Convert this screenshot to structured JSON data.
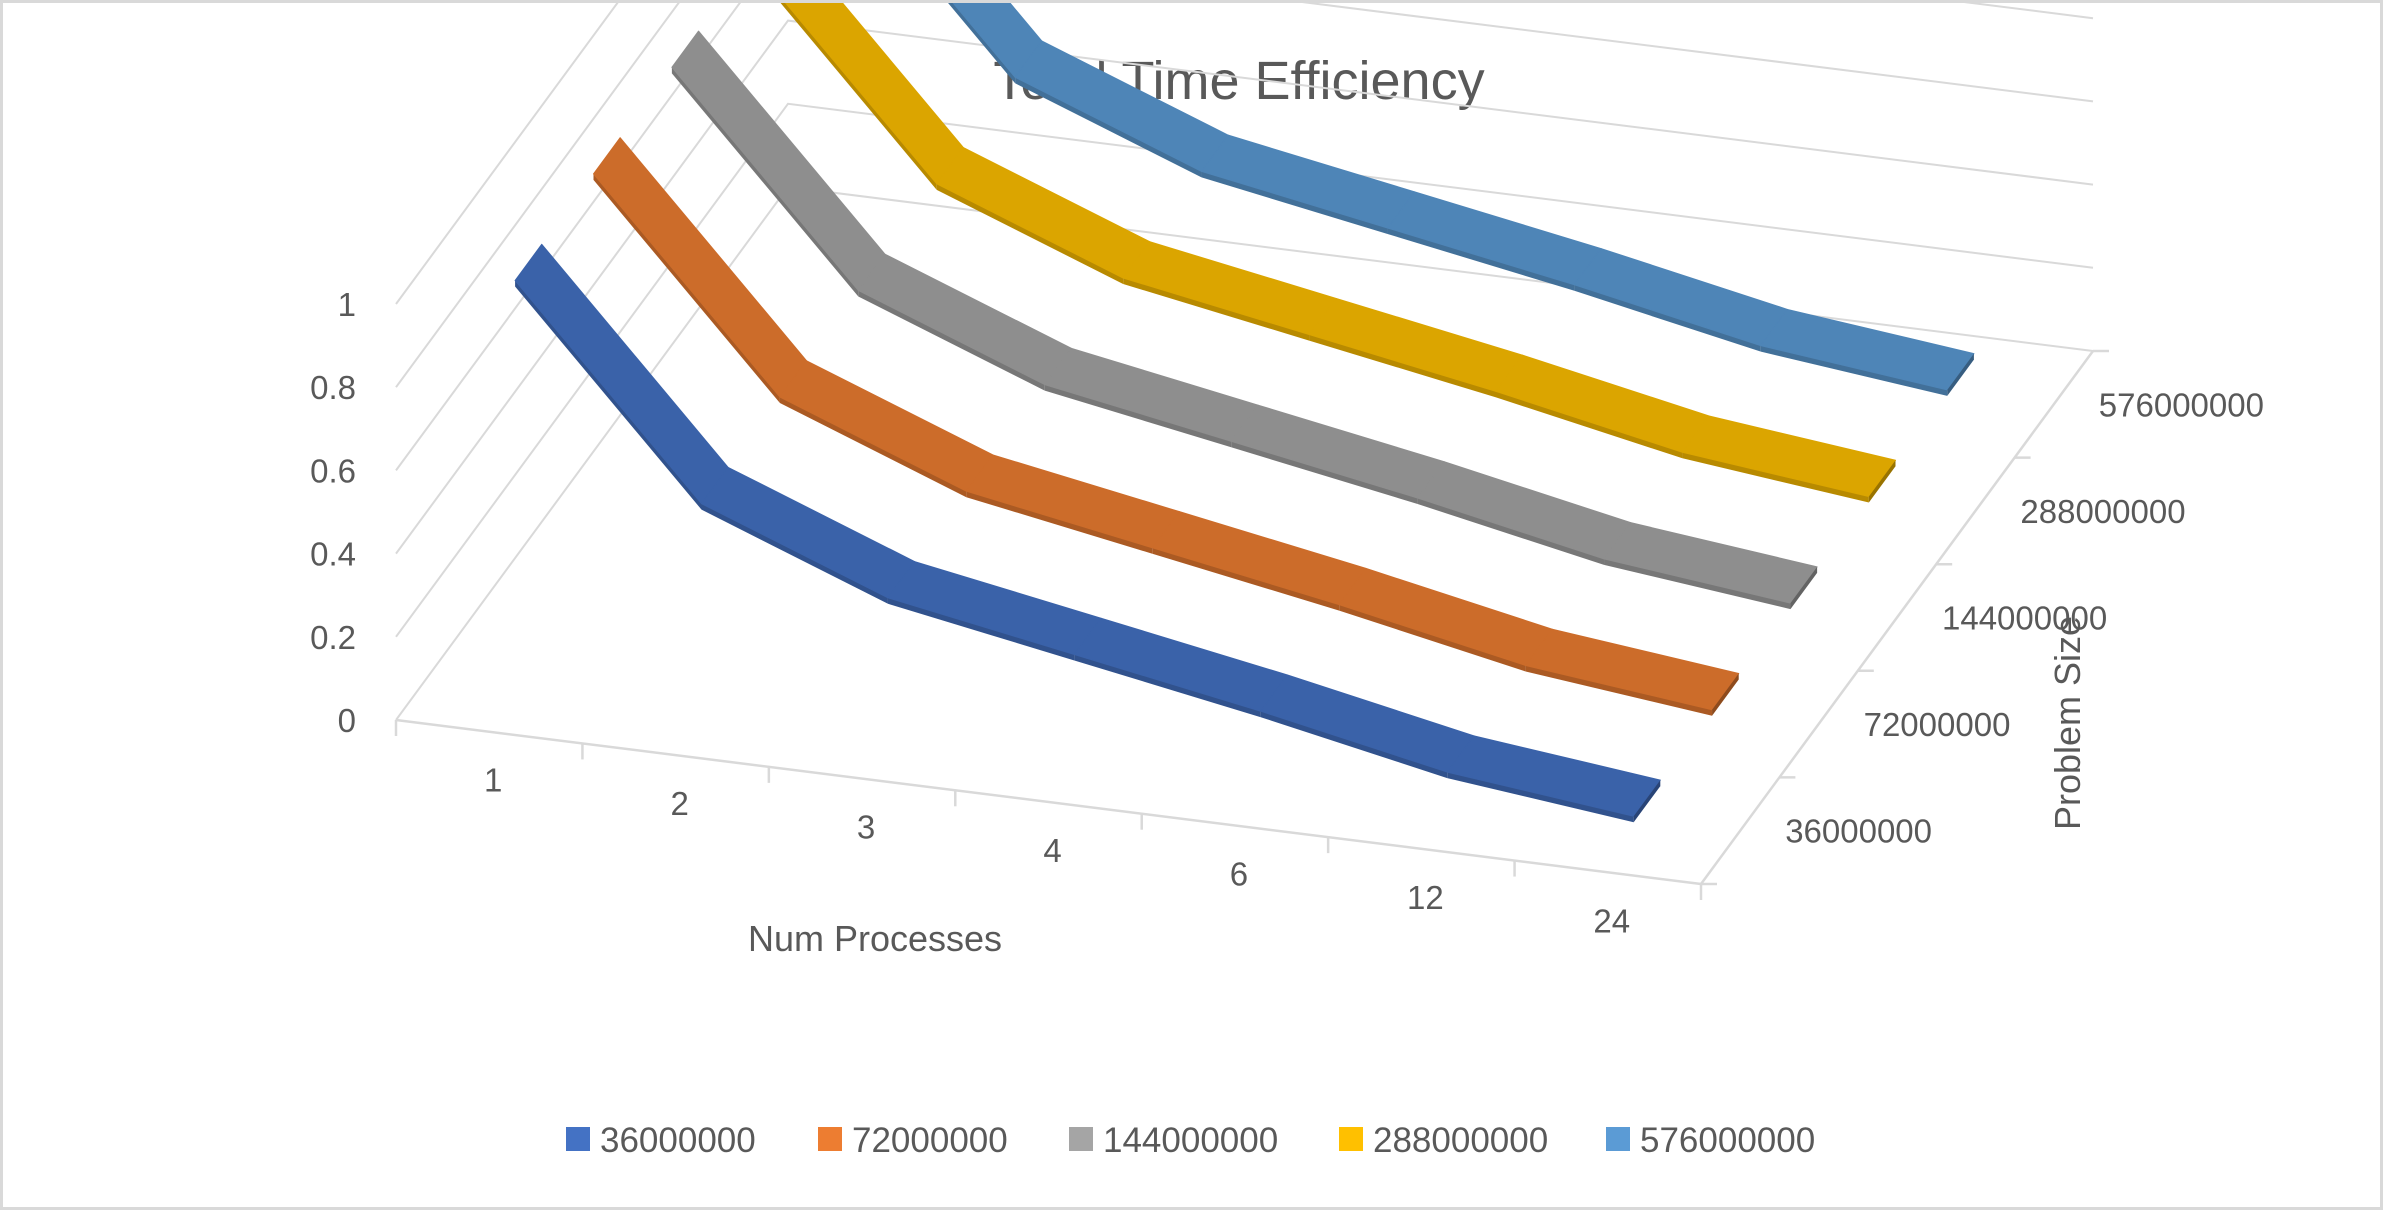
{
  "chart_data": {
    "type": "line",
    "variant": "3d-line",
    "title": "Total Time Efficiency",
    "xlabel": "Num Processes",
    "zlabel": "Problem Size",
    "ylabel": "",
    "categories": [
      "1",
      "2",
      "3",
      "4",
      "6",
      "12",
      "24"
    ],
    "depth_categories": [
      "36000000",
      "72000000",
      "144000000",
      "288000000",
      "576000000"
    ],
    "y_ticks": [
      "0",
      "0.2",
      "0.4",
      "0.6",
      "0.8",
      "1"
    ],
    "ylim": [
      0,
      1
    ],
    "grid": true,
    "legend_position": "bottom",
    "series": [
      {
        "name": "36000000",
        "color": "#4472C4",
        "values": [
          1.0,
          0.52,
          0.35,
          0.27,
          0.19,
          0.1,
          0.05
        ]
      },
      {
        "name": "72000000",
        "color": "#ED7D31",
        "values": [
          1.0,
          0.52,
          0.35,
          0.27,
          0.19,
          0.1,
          0.05
        ]
      },
      {
        "name": "144000000",
        "color": "#A5A5A5",
        "values": [
          1.0,
          0.52,
          0.35,
          0.27,
          0.19,
          0.1,
          0.05
        ]
      },
      {
        "name": "288000000",
        "color": "#FFC000",
        "values": [
          1.0,
          0.52,
          0.35,
          0.27,
          0.19,
          0.1,
          0.05
        ]
      },
      {
        "name": "576000000",
        "color": "#5B9BD5",
        "values": [
          1.0,
          0.52,
          0.35,
          0.27,
          0.19,
          0.1,
          0.05
        ]
      }
    ]
  }
}
